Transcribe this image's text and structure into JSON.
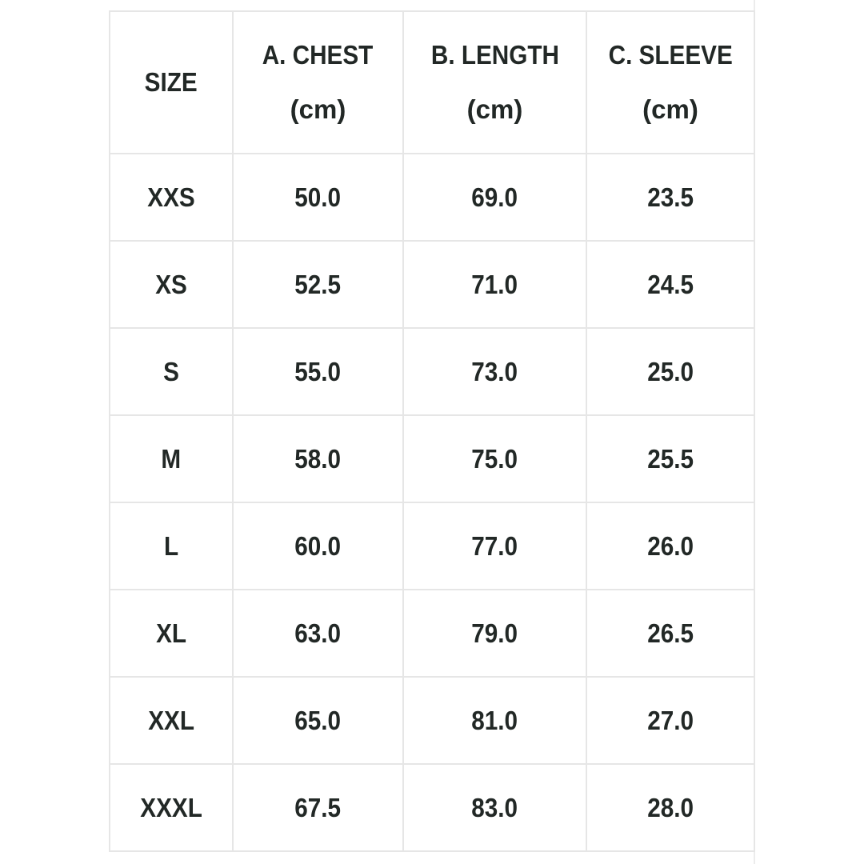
{
  "headers": [
    {
      "label": "SIZE",
      "unit": ""
    },
    {
      "label": "A. CHEST",
      "unit": "(cm)"
    },
    {
      "label": "B. LENGTH",
      "unit": "(cm)"
    },
    {
      "label": "C. SLEEVE",
      "unit": "(cm)"
    }
  ],
  "rows": [
    [
      "XXS",
      "50.0",
      "69.0",
      "23.5"
    ],
    [
      "XS",
      "52.5",
      "71.0",
      "24.5"
    ],
    [
      "S",
      "55.0",
      "73.0",
      "25.0"
    ],
    [
      "M",
      "58.0",
      "75.0",
      "25.5"
    ],
    [
      "L",
      "60.0",
      "77.0",
      "26.0"
    ],
    [
      "XL",
      "63.0",
      "79.0",
      "26.5"
    ],
    [
      "XXL",
      "65.0",
      "81.0",
      "27.0"
    ],
    [
      "XXXL",
      "67.5",
      "83.0",
      "28.0"
    ]
  ]
}
